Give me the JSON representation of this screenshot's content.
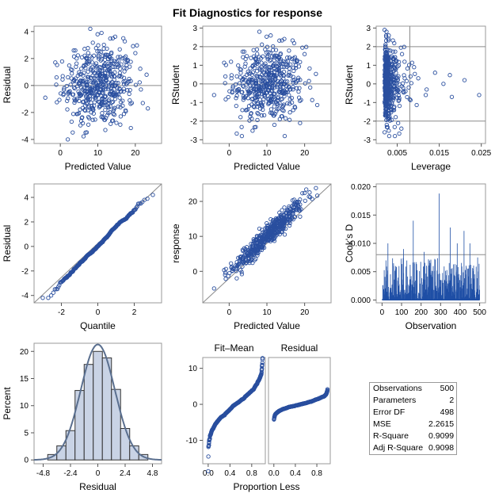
{
  "title": "Fit Diagnostics for response",
  "colors": {
    "marker": "#2a4f9f",
    "frame": "#9a9a9a",
    "refline": "#8a8a8a",
    "bar_fill": "#c9d3e5",
    "curve": "#5a6f8f",
    "spike": "#1f4fa6"
  },
  "chart_data": [
    {
      "id": "resid_vs_pred",
      "type": "scatter",
      "xlabel": "Predicted Value",
      "ylabel": "Residual",
      "xlim": [
        -7,
        27
      ],
      "ylim": [
        -4.3,
        4.4
      ],
      "xticks": [
        0,
        10,
        20
      ],
      "yticks": [
        -4,
        -2,
        0,
        2,
        4
      ],
      "refline": {
        "y": [
          0
        ]
      },
      "n": 500,
      "sampled_points": [
        [
          8,
          4.2
        ],
        [
          11,
          3.9
        ],
        [
          14,
          3.5
        ],
        [
          4,
          2.6
        ],
        [
          20,
          2.4
        ],
        [
          -4,
          -0.9
        ],
        [
          -1,
          0.6
        ],
        [
          23,
          0.8
        ],
        [
          22,
          -1.3
        ],
        [
          6,
          -2.8
        ],
        [
          12,
          -3.3
        ],
        [
          16,
          -2.9
        ],
        [
          2,
          -4.0
        ],
        [
          10,
          -0.1
        ],
        [
          13,
          1.2
        ],
        [
          9,
          -1.5
        ]
      ]
    },
    {
      "id": "rstudent_vs_pred",
      "type": "scatter",
      "xlabel": "Predicted Value",
      "ylabel": "RStudent",
      "xlim": [
        -7,
        27
      ],
      "ylim": [
        -3.2,
        3.1
      ],
      "xticks": [
        0,
        10,
        20
      ],
      "yticks": [
        -3,
        -2,
        -1,
        0,
        1,
        2,
        3
      ],
      "refline": {
        "y": [
          -2,
          0,
          2
        ]
      },
      "n": 500,
      "sampled_points": [
        [
          8,
          2.8
        ],
        [
          11,
          2.7
        ],
        [
          14,
          2.4
        ],
        [
          20,
          1.7
        ],
        [
          -4,
          -0.6
        ],
        [
          -1,
          0.4
        ],
        [
          23,
          0.5
        ],
        [
          22,
          -0.8
        ],
        [
          6,
          -1.9
        ],
        [
          12,
          -2.3
        ],
        [
          16,
          -2.0
        ],
        [
          2,
          -2.6
        ],
        [
          10,
          0.0
        ],
        [
          13,
          0.9
        ],
        [
          9,
          -1.1
        ]
      ]
    },
    {
      "id": "rstudent_vs_leverage",
      "type": "scatter",
      "xlabel": "Leverage",
      "ylabel": "RStudent",
      "xlim": [
        0,
        0.026
      ],
      "ylim": [
        -3.2,
        3.1
      ],
      "xticks": [
        0.005,
        0.015,
        0.025
      ],
      "xtick_labels": [
        "0.005",
        "0.015",
        "0.025"
      ],
      "yticks": [
        -3,
        -2,
        -1,
        0,
        1,
        2,
        3
      ],
      "refline": {
        "y": [
          -2,
          2
        ],
        "x": [
          0.008
        ]
      },
      "n": 500,
      "sampled_points": [
        [
          0.002,
          2.9
        ],
        [
          0.003,
          2.6
        ],
        [
          0.002,
          -2.6
        ],
        [
          0.006,
          -2.4
        ],
        [
          0.009,
          0.9
        ],
        [
          0.01,
          0.3
        ],
        [
          0.012,
          -0.3
        ],
        [
          0.014,
          0.6
        ],
        [
          0.016,
          0.0
        ],
        [
          0.018,
          -0.7
        ],
        [
          0.021,
          0.2
        ],
        [
          0.0245,
          -0.6
        ],
        [
          0.0022,
          0.1
        ]
      ]
    },
    {
      "id": "resid_qq",
      "type": "scatter",
      "xlabel": "Quantile",
      "ylabel": "Residual",
      "xlim": [
        -3.5,
        3.5
      ],
      "ylim": [
        -4.6,
        5.1
      ],
      "xticks": [
        -2,
        0,
        2
      ],
      "yticks": [
        -4,
        -2,
        0,
        2,
        4
      ],
      "refline": {
        "diagonal": true
      },
      "n": 500,
      "sampled_points": [
        [
          -3.0,
          -4.0
        ],
        [
          -2.5,
          -3.7
        ],
        [
          -2.0,
          -3.0
        ],
        [
          -1.0,
          -1.5
        ],
        [
          0,
          0
        ],
        [
          1.0,
          1.5
        ],
        [
          2.0,
          3.0
        ],
        [
          2.5,
          3.8
        ],
        [
          2.8,
          4.3
        ]
      ]
    },
    {
      "id": "response_vs_pred",
      "type": "scatter",
      "xlabel": "Predicted Value",
      "ylabel": "response",
      "xlim": [
        -7,
        27
      ],
      "ylim": [
        -9,
        25
      ],
      "xticks": [
        0,
        10,
        20
      ],
      "yticks": [
        0,
        10,
        20
      ],
      "refline": {
        "diagonal": true
      },
      "n": 500,
      "sampled_points": [
        [
          -4,
          -7.5
        ],
        [
          -2,
          -3
        ],
        [
          0,
          1
        ],
        [
          5,
          4
        ],
        [
          10,
          10
        ],
        [
          15,
          16
        ],
        [
          20,
          21
        ],
        [
          22,
          22
        ]
      ]
    },
    {
      "id": "cooks_d",
      "type": "bar",
      "xlabel": "Observation",
      "ylabel": "Cook's D",
      "xlim": [
        -30,
        530
      ],
      "ylim": [
        -0.0005,
        0.0205
      ],
      "xticks": [
        0,
        100,
        200,
        300,
        400,
        500
      ],
      "yticks": [
        0,
        0.005,
        0.01,
        0.015,
        0.02
      ],
      "ytick_labels": [
        "0.000",
        "0.005",
        "0.010",
        "0.015",
        "0.020"
      ],
      "refline": {
        "y": [
          0.008
        ]
      },
      "n": 500,
      "peaks": [
        [
          30,
          0.01
        ],
        [
          70,
          0.006
        ],
        [
          110,
          0.009
        ],
        [
          160,
          0.014
        ],
        [
          215,
          0.0085
        ],
        [
          262,
          0.006
        ],
        [
          292,
          0.0188
        ],
        [
          350,
          0.0128
        ],
        [
          385,
          0.01
        ],
        [
          420,
          0.0122
        ],
        [
          450,
          0.01
        ]
      ]
    },
    {
      "id": "residual_histogram",
      "type": "bar",
      "xlabel": "Residual",
      "ylabel": "Percent",
      "xlim": [
        -5.6,
        5.6
      ],
      "ylim": [
        -0.7,
        21.5
      ],
      "xticks": [
        -4.8,
        -2.4,
        0,
        2.4,
        4.8
      ],
      "xtick_labels": [
        "-4.8",
        "-2.4",
        "0",
        "2.4",
        "4.8"
      ],
      "yticks": [
        0,
        5,
        10,
        15,
        20
      ],
      "bin_width": 0.8,
      "bin_starts": [
        -4.4,
        -3.6,
        -2.8,
        -2.0,
        -1.2,
        -0.4,
        0.4,
        1.2,
        2.0,
        2.8,
        3.6
      ],
      "values": [
        1.0,
        2.6,
        5.4,
        12.8,
        17.6,
        20.0,
        18.8,
        13.0,
        5.8,
        2.6,
        1.0
      ],
      "normal_curve": {
        "mean": 0,
        "sd": 1.5
      }
    },
    {
      "id": "rf_fit_mean",
      "type": "scatter",
      "title": "Fit–Mean",
      "xlabel": "",
      "ylabel": "",
      "xlim": [
        -0.1,
        1.05
      ],
      "ylim": [
        -16.5,
        13
      ],
      "xticks": [
        0,
        0.4,
        0.8
      ],
      "xtick_labels": [
        "0.0",
        "0.4",
        "0.8"
      ],
      "yticks": [
        -10,
        0,
        10
      ],
      "n": 500
    },
    {
      "id": "rf_residual",
      "type": "scatter",
      "title": "Residual",
      "xlabel": "",
      "ylabel": "",
      "xlim": [
        -0.1,
        1.05
      ],
      "ylim": [
        -16.5,
        13
      ],
      "xticks": [
        0,
        0.4,
        0.8
      ],
      "xtick_labels": [
        "0.0",
        "0.4",
        "0.8"
      ],
      "n": 500
    }
  ],
  "rf_xlabel": "Proportion Less",
  "fit_stats": [
    {
      "label": "Observations",
      "value": "500"
    },
    {
      "label": "Parameters",
      "value": "2"
    },
    {
      "label": "Error DF",
      "value": "498"
    },
    {
      "label": "MSE",
      "value": "2.2615"
    },
    {
      "label": "R-Square",
      "value": "0.9099"
    },
    {
      "label": "Adj R-Square",
      "value": "0.9098"
    }
  ]
}
